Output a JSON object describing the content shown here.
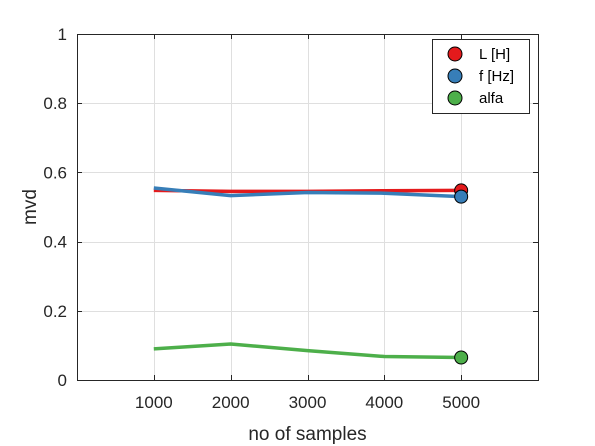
{
  "chart_data": {
    "type": "line",
    "title": "",
    "xlabel": "no of samples",
    "ylabel": "mvd",
    "xlim": [
      0,
      6000
    ],
    "ylim": [
      0,
      1
    ],
    "x_ticks": [
      1000,
      2000,
      3000,
      4000,
      5000
    ],
    "x_tick_labels": [
      "1000",
      "2000",
      "3000",
      "4000",
      "5000"
    ],
    "y_ticks": [
      0,
      0.2,
      0.4,
      0.6,
      0.8,
      1
    ],
    "y_tick_labels": [
      "0",
      "0.2",
      "0.4",
      "0.6",
      "0.8",
      "1"
    ],
    "grid": true,
    "legend_position": "top-right",
    "x": [
      1000,
      2000,
      3000,
      4000,
      5000
    ],
    "series": [
      {
        "name": "L [H]",
        "color": "#e41a1c",
        "values": [
          0.548,
          0.545,
          0.545,
          0.547,
          0.548
        ]
      },
      {
        "name": "f [Hz]",
        "color": "#377eb8",
        "values": [
          0.555,
          0.533,
          0.542,
          0.54,
          0.53
        ]
      },
      {
        "name": "alfa",
        "color": "#4daf4a",
        "values": [
          0.09,
          0.104,
          0.085,
          0.068,
          0.065
        ]
      }
    ]
  }
}
